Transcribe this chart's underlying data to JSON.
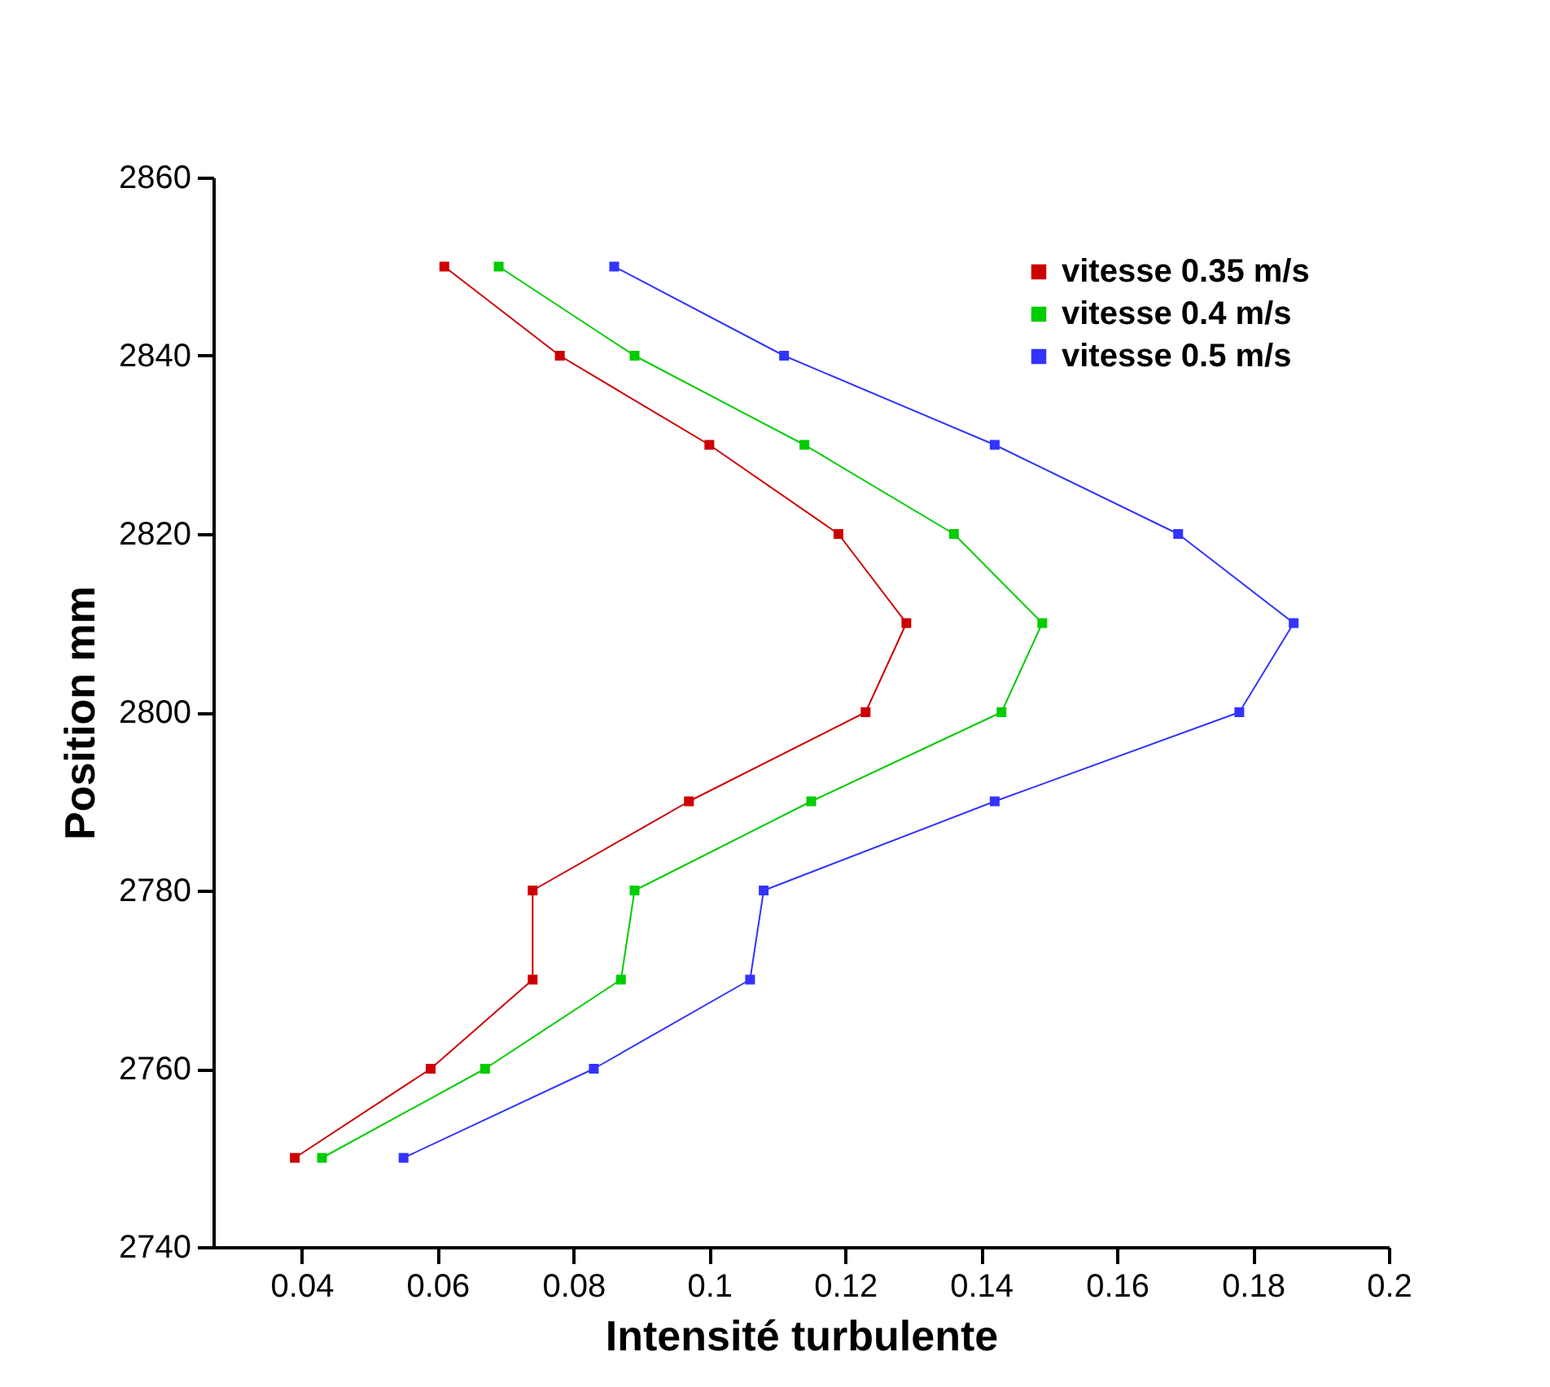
{
  "chart_data": {
    "type": "line",
    "xlabel": "Intensité turbulente",
    "ylabel": "Position mm",
    "xlim": [
      0.027,
      0.2
    ],
    "xticks": [
      0.04,
      0.06,
      0.08,
      0.1,
      0.12,
      0.14,
      0.16,
      0.18,
      0.2
    ],
    "ylim": [
      2740,
      2860
    ],
    "yticks": [
      2740,
      2760,
      2780,
      2800,
      2820,
      2840,
      2860
    ],
    "marker": "square",
    "legend": "top right",
    "grid": false,
    "series": [
      {
        "name": "vitesse 0.35 m/s",
        "color": "#cc0000",
        "x": [
          0.061,
          0.078,
          0.1,
          0.119,
          0.129,
          0.123,
          0.097,
          0.074,
          0.074,
          0.059,
          0.039
        ],
        "values": [
          2850,
          2840,
          2830,
          2820,
          2810,
          2800,
          2790,
          2780,
          2770,
          2760,
          2750
        ]
      },
      {
        "name": "vitesse 0.4 m/s",
        "color": "#00cc00",
        "x": [
          0.069,
          0.089,
          0.114,
          0.136,
          0.149,
          0.143,
          0.115,
          0.089,
          0.087,
          0.067,
          0.043
        ],
        "values": [
          2850,
          2840,
          2830,
          2820,
          2810,
          2800,
          2790,
          2780,
          2770,
          2760,
          2750
        ]
      },
      {
        "name": "vitesse 0.5 m/s",
        "color": "#3333ff",
        "x": [
          0.086,
          0.111,
          0.142,
          0.169,
          0.186,
          0.178,
          0.142,
          0.108,
          0.106,
          0.083,
          0.055
        ],
        "values": [
          2850,
          2840,
          2830,
          2820,
          2810,
          2800,
          2790,
          2780,
          2770,
          2760,
          2750
        ]
      }
    ]
  }
}
